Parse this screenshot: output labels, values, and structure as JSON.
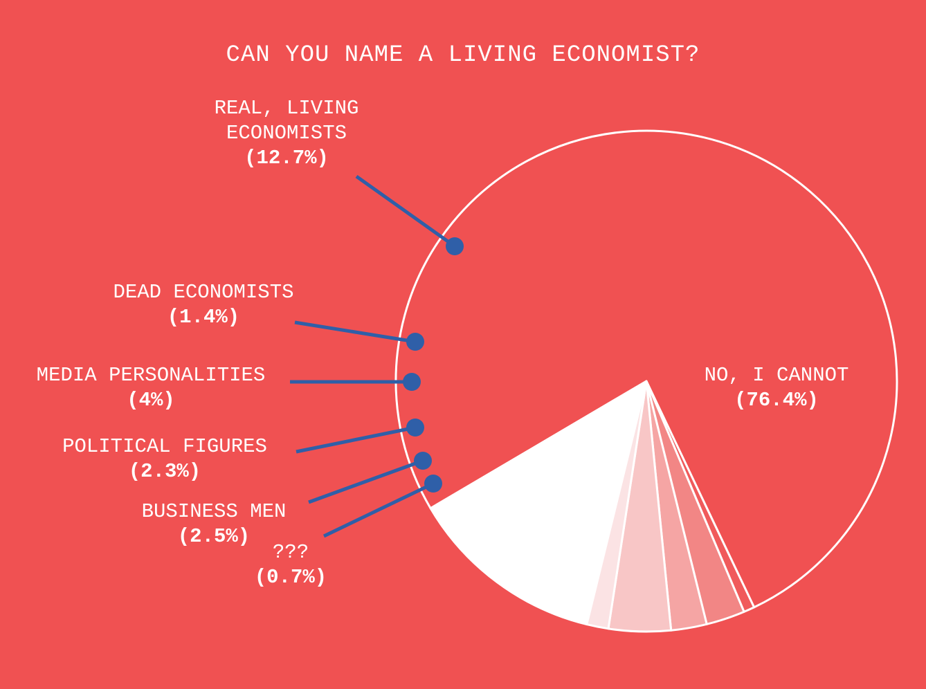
{
  "chart_data": {
    "type": "pie",
    "title": "CAN YOU NAME A LIVING ECONOMIST?",
    "slices": [
      {
        "name": "NO, I CANNOT",
        "value": 76.4,
        "pct_label": "(76.4%)",
        "color": "#f05152"
      },
      {
        "name": "???",
        "value": 0.7,
        "pct_label": "(0.7%)",
        "color": "#f05a5b"
      },
      {
        "name": "BUSINESS MEN",
        "value": 2.5,
        "pct_label": "(2.5%)",
        "color": "#f28685"
      },
      {
        "name": "POLITICAL FIGURES",
        "value": 2.3,
        "pct_label": "(2.3%)",
        "color": "#f5a5a4"
      },
      {
        "name": "MEDIA PERSONALITIES",
        "value": 4,
        "pct_label": "(4%)",
        "color": "#f8c6c6"
      },
      {
        "name": "DEAD ECONOMISTS",
        "value": 1.4,
        "pct_label": "(1.4%)",
        "color": "#fbe3e4"
      },
      {
        "name": "REAL, LIVING ECONOMISTS",
        "value": 12.7,
        "pct_label": "(12.7%)",
        "color": "#ffffff"
      }
    ],
    "colors": {
      "background": "#f05152",
      "outline": "#ffffff",
      "leader": "#2f5fa8",
      "text": "#ffffff"
    }
  }
}
